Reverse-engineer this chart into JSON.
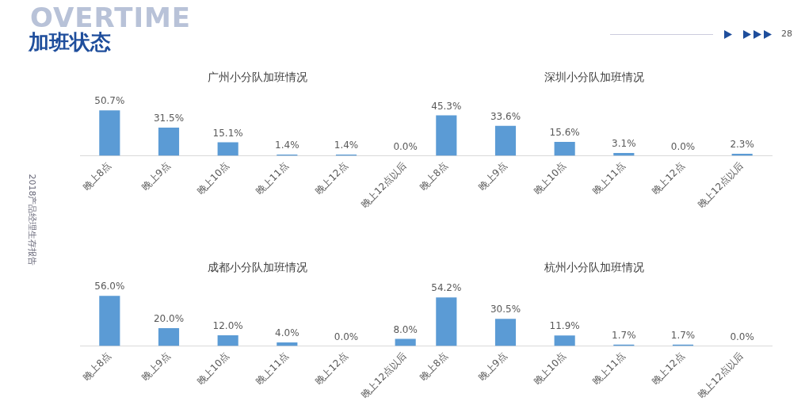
{
  "chart_data": [
    {
      "type": "other",
      "title": "加班状态",
      "annotations": [
        "OVERTIME",
        "28",
        "2018产品经理生存报告"
      ]
    },
    {
      "type": "bar",
      "title": "广州小分队加班情况",
      "categories": [
        "晚上8点",
        "晚上9点",
        "晚上10点",
        "晚上11点",
        "晚上12点",
        "晚上12点以后"
      ],
      "values": [
        50.7,
        31.5,
        15.1,
        1.4,
        1.4,
        0.0
      ],
      "value_labels": [
        "50.7%",
        "31.5%",
        "15.1%",
        "1.4%",
        "1.4%",
        "0.0%"
      ],
      "color": "#5b9bd5",
      "grid": false,
      "legend": false,
      "tick_labels": "x"
    },
    {
      "type": "bar",
      "title": "深圳小分队加班情况",
      "categories": [
        "晚上8点",
        "晚上9点",
        "晚上10点",
        "晚上11点",
        "晚上12点",
        "晚上12点以后"
      ],
      "values": [
        45.3,
        33.6,
        15.6,
        3.1,
        0.0,
        2.3
      ],
      "value_labels": [
        "45.3%",
        "33.6%",
        "15.6%",
        "3.1%",
        "0.0%",
        "2.3%"
      ],
      "color": "#5b9bd5",
      "grid": false,
      "legend": false,
      "tick_labels": "x"
    },
    {
      "type": "bar",
      "title": "成都小分队加班情况",
      "categories": [
        "晚上8点",
        "晚上9点",
        "晚上10点",
        "晚上11点",
        "晚上12点",
        "晚上12点以后"
      ],
      "values": [
        56.0,
        20.0,
        12.0,
        4.0,
        0.0,
        8.0
      ],
      "value_labels": [
        "56.0%",
        "20.0%",
        "12.0%",
        "4.0%",
        "0.0%",
        "8.0%"
      ],
      "color": "#5b9bd5",
      "grid": false,
      "legend": false,
      "tick_labels": "x"
    },
    {
      "type": "bar",
      "title": "杭州小分队加班情况",
      "categories": [
        "晚上8点",
        "晚上9点",
        "晚上10点",
        "晚上11点",
        "晚上12点",
        "晚上12点以后"
      ],
      "values": [
        54.2,
        30.5,
        11.9,
        1.7,
        1.7,
        0.0
      ],
      "value_labels": [
        "54.2%",
        "30.5%",
        "11.9%",
        "1.7%",
        "1.7%",
        "0.0%"
      ],
      "color": "#5b9bd5",
      "grid": false,
      "legend": false,
      "tick_labels": "x"
    }
  ]
}
